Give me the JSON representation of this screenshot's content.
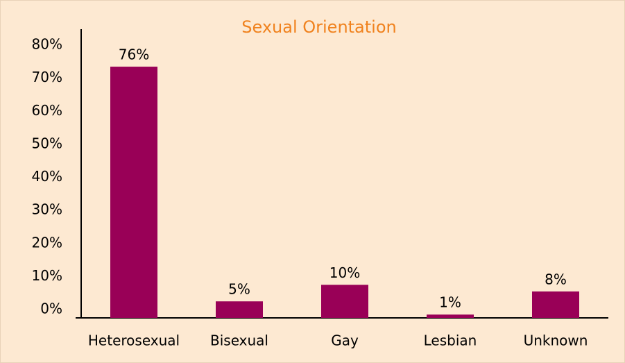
{
  "chart_data": {
    "type": "bar",
    "title": "Sexual Orientation",
    "categories": [
      "Heterosexual",
      "Bisexual",
      "Gay",
      "Lesbian",
      "Unknown"
    ],
    "values": [
      76,
      5,
      10,
      1,
      8
    ],
    "value_labels": [
      "76%",
      "5%",
      "10%",
      "1%",
      "8%"
    ],
    "color": "#990057",
    "ylim": [
      0,
      80
    ],
    "yticks": [
      {
        "value": 0,
        "label": "0%"
      },
      {
        "value": 10,
        "label": "10%"
      },
      {
        "value": 20,
        "label": "20%"
      },
      {
        "value": 30,
        "label": "30%"
      },
      {
        "value": 40,
        "label": "40%"
      },
      {
        "value": 50,
        "label": "50%"
      },
      {
        "value": 60,
        "label": "60%"
      },
      {
        "value": 70,
        "label": "70%"
      },
      {
        "value": 80,
        "label": "80%"
      }
    ],
    "grid": false
  }
}
